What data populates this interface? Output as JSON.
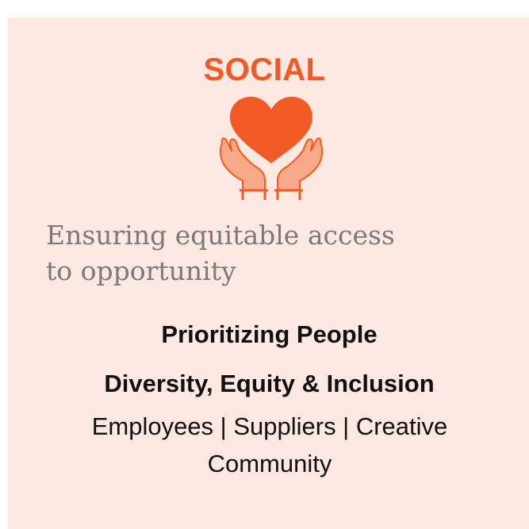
{
  "colors": {
    "card_background": "#fde9e1",
    "accent": "#f15a24",
    "hands": "#f7a98a",
    "tagline_text": "#7a7a7a",
    "body_text": "#111111"
  },
  "card": {
    "heading": "SOCIAL",
    "icon": "heart-in-hands-icon",
    "tagline_line1": "Ensuring equitable access",
    "tagline_line2": "to opportunity",
    "subheading1": "Prioritizing People",
    "subheading2": "Diversity, Equity & Inclusion",
    "details": "Employees | Suppliers | Creative Community"
  }
}
